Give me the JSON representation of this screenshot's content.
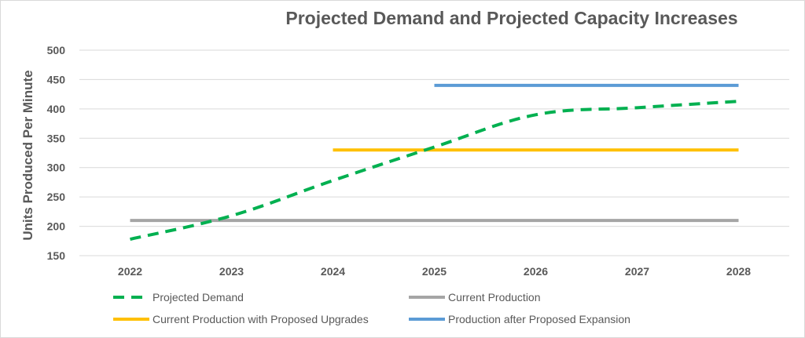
{
  "chart_data": {
    "type": "line",
    "title": "Projected Demand and Projected Capacity Increases",
    "xlabel": "",
    "ylabel": "Units Produced Per Minute",
    "x": [
      "2022",
      "2023",
      "2024",
      "2025",
      "2026",
      "2027",
      "2028"
    ],
    "y_ticks": [
      150,
      200,
      250,
      300,
      350,
      400,
      450,
      500
    ],
    "ylim": [
      150,
      500
    ],
    "grid": true,
    "legend_position": "bottom",
    "series": [
      {
        "name": "Projected Demand",
        "color": "#00b050",
        "dash": "dashed",
        "values": [
          178,
          218,
          278,
          335,
          390,
          402,
          413
        ]
      },
      {
        "name": "Current Production",
        "color": "#a5a5a5",
        "dash": "solid",
        "values": [
          210,
          210,
          210,
          210,
          210,
          210,
          210
        ]
      },
      {
        "name": "Current Production with Proposed Upgrades",
        "color": "#ffc000",
        "dash": "solid",
        "values": [
          null,
          null,
          330,
          330,
          330,
          330,
          330
        ]
      },
      {
        "name": "Production after Proposed Expansion",
        "color": "#5b9bd5",
        "dash": "solid",
        "values": [
          null,
          null,
          null,
          440,
          440,
          440,
          440
        ]
      }
    ]
  }
}
